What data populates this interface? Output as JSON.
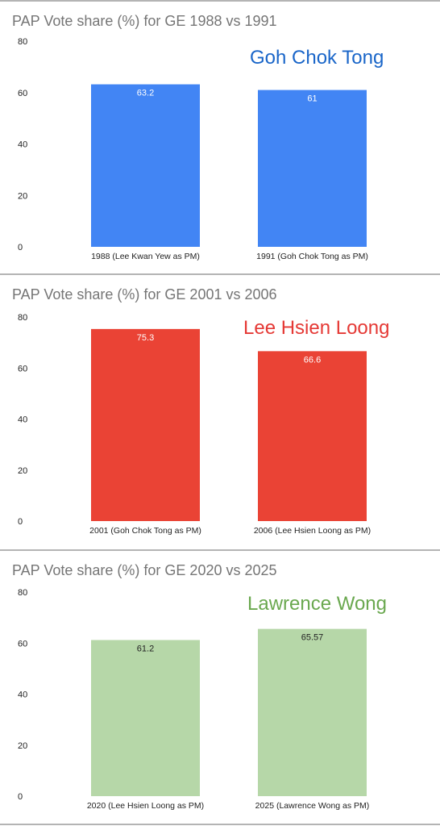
{
  "chart_data": [
    {
      "type": "bar",
      "title": "PAP Vote share (%) for GE 1988 vs 1991",
      "annotation": "Goh Chok Tong",
      "annotation_color": "#1a66c9",
      "bar_color": "#4285f4",
      "value_label_color": "#ffffff",
      "categories": [
        "1988 (Lee Kwan Yew as PM)",
        "1991 (Goh Chok Tong as PM)"
      ],
      "values": [
        63.2,
        61
      ],
      "value_labels": [
        "63.2",
        "61"
      ],
      "ylim": [
        0,
        80
      ],
      "yticks": [
        "0",
        "20",
        "40",
        "60",
        "80"
      ],
      "xlabel": "",
      "ylabel": "",
      "grid": false,
      "legend": "none"
    },
    {
      "type": "bar",
      "title": "PAP Vote share (%) for GE 2001 vs 2006",
      "annotation": "Lee Hsien Loong",
      "annotation_color": "#e53935",
      "bar_color": "#ea4335",
      "value_label_color": "#ffffff",
      "categories": [
        "2001 (Goh Chok Tong as PM)",
        "2006 (Lee Hsien Loong as PM)"
      ],
      "values": [
        75.3,
        66.6
      ],
      "value_labels": [
        "75.3",
        "66.6"
      ],
      "ylim": [
        0,
        80
      ],
      "yticks": [
        "0",
        "20",
        "40",
        "60",
        "80"
      ],
      "xlabel": "",
      "ylabel": "",
      "grid": false,
      "legend": "none"
    },
    {
      "type": "bar",
      "title": "PAP Vote share (%) for GE 2020 vs 2025",
      "annotation": "Lawrence Wong",
      "annotation_color": "#6aa84f",
      "bar_color": "#b6d7a8",
      "value_label_color": "#222222",
      "categories": [
        "2020 (Lee Hsien Loong as PM)",
        "2025 (Lawrence Wong as PM)"
      ],
      "values": [
        61.2,
        65.57
      ],
      "value_labels": [
        "61.2",
        "65.57"
      ],
      "ylim": [
        0,
        80
      ],
      "yticks": [
        "0",
        "20",
        "40",
        "60",
        "80"
      ],
      "xlabel": "",
      "ylabel": "",
      "grid": false,
      "legend": "none"
    }
  ]
}
